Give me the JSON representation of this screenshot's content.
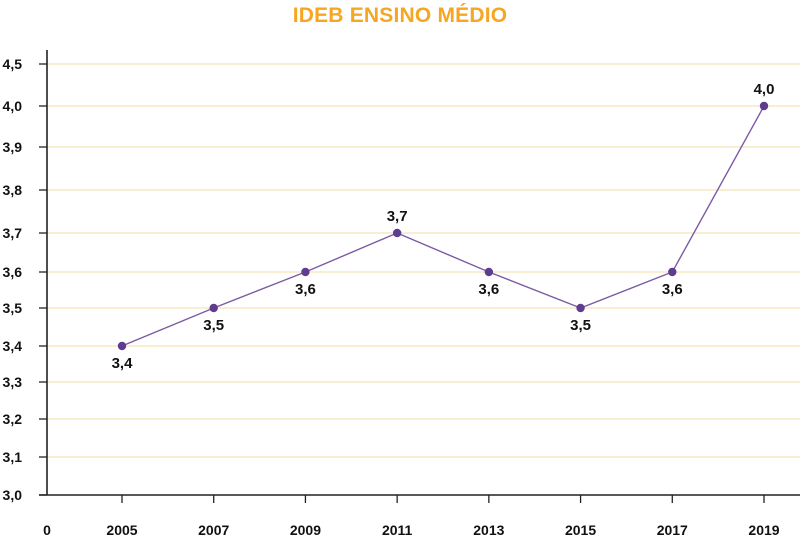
{
  "chart_data": {
    "type": "line",
    "title": "IDEB ENSINO MÉDIO",
    "xlabel": "",
    "ylabel": "",
    "x_origin_label": "0",
    "categories": [
      "2005",
      "2007",
      "2009",
      "2011",
      "2013",
      "2015",
      "2017",
      "2019"
    ],
    "series": [
      {
        "values": [
          3.4,
          3.5,
          3.6,
          3.7,
          3.6,
          3.5,
          3.6,
          4.0
        ],
        "data_labels": [
          "3,4",
          "3,5",
          "3,6",
          "3,7",
          "3,6",
          "3,5",
          "3,6",
          "4,0"
        ],
        "label_positions": [
          "below",
          "below",
          "below",
          "above",
          "below",
          "below",
          "below",
          "above"
        ]
      }
    ],
    "y_ticks": [
      "3,0",
      "3,1",
      "3,2",
      "3,3",
      "3,4",
      "3,5",
      "3,6",
      "3,7",
      "3,8",
      "3,9",
      "4,0",
      "4,5"
    ],
    "y_tick_values": [
      3.0,
      3.1,
      3.2,
      3.3,
      3.4,
      3.5,
      3.6,
      3.7,
      3.8,
      3.9,
      4.0,
      4.5
    ],
    "grid": true,
    "legend": "none",
    "colors": {
      "title": "#f5a623",
      "line": "#7b5aa6",
      "marker": "#5e3d8f",
      "grid": "#f6dca6",
      "axis": "#222222"
    }
  }
}
